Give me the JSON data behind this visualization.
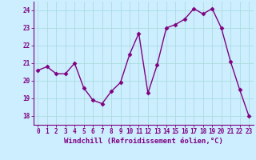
{
  "x": [
    0,
    1,
    2,
    3,
    4,
    5,
    6,
    7,
    8,
    9,
    10,
    11,
    12,
    13,
    14,
    15,
    16,
    17,
    18,
    19,
    20,
    21,
    22,
    23
  ],
  "y": [
    20.6,
    20.8,
    20.4,
    20.4,
    21.0,
    19.6,
    18.9,
    18.7,
    19.4,
    19.9,
    21.5,
    22.7,
    19.3,
    20.9,
    23.0,
    23.2,
    23.5,
    24.1,
    23.8,
    24.1,
    23.0,
    21.1,
    19.5,
    18.0
  ],
  "line_color": "#800080",
  "marker": "D",
  "markersize": 2.5,
  "linewidth": 1.0,
  "bg_color": "#cceeff",
  "grid_color": "#aadddd",
  "xlabel": "Windchill (Refroidissement éolien,°C)",
  "xlabel_fontsize": 6.5,
  "tick_fontsize": 5.5,
  "ylim": [
    17.5,
    24.5
  ],
  "xlim": [
    -0.5,
    23.5
  ],
  "yticks": [
    18,
    19,
    20,
    21,
    22,
    23,
    24
  ],
  "xticks": [
    0,
    1,
    2,
    3,
    4,
    5,
    6,
    7,
    8,
    9,
    10,
    11,
    12,
    13,
    14,
    15,
    16,
    17,
    18,
    19,
    20,
    21,
    22,
    23
  ]
}
